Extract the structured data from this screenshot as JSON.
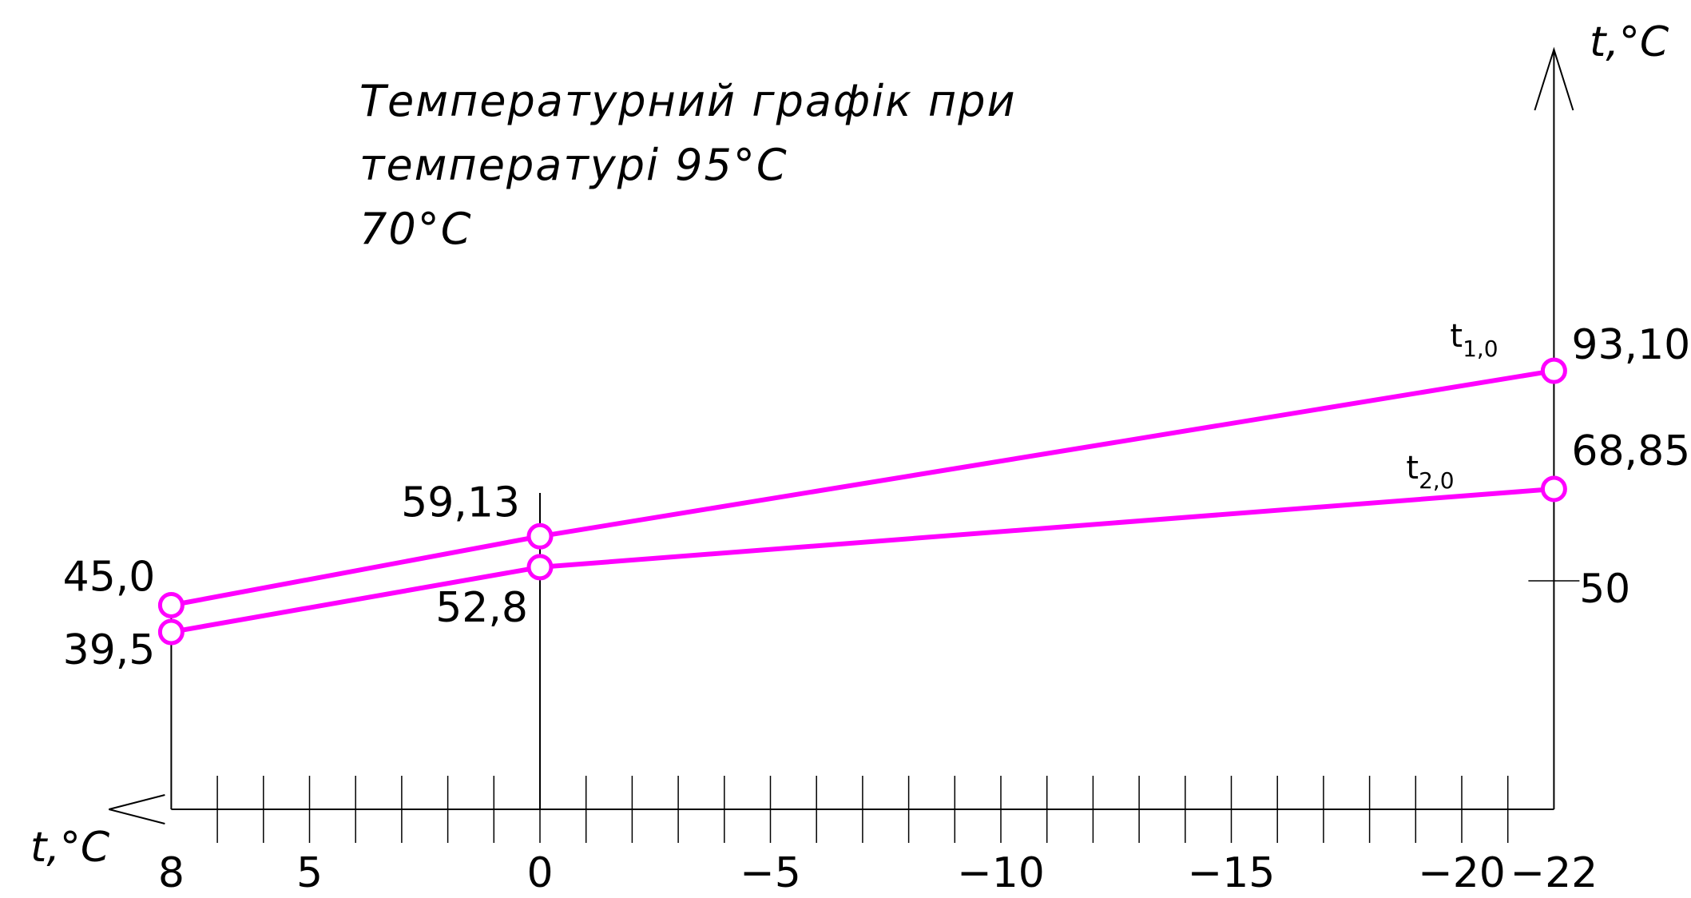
{
  "title_lines": [
    "Температурний графік при",
    "температурі 95°C",
    "70°C"
  ],
  "chart_data": {
    "type": "line",
    "title": "Температурний графік при температурі 95°C 70°C",
    "xlabel": "t,°C",
    "ylabel": "t,°C",
    "x_ticks": [
      8,
      5,
      0,
      -5,
      -10,
      -15,
      -20,
      -22
    ],
    "x_tick_labels": [
      "8",
      "5",
      "0",
      "−5",
      "−10",
      "−15",
      "−20",
      "−22"
    ],
    "y_ticks": [
      50
    ],
    "y_tick_labels": [
      "50"
    ],
    "series": [
      {
        "name": "t1,0",
        "name_main": "t",
        "name_sub": "1,0",
        "x": [
          8,
          0,
          -22
        ],
        "y": [
          45.0,
          59.13,
          93.1
        ],
        "labels": [
          "45,0",
          "59,13",
          "93,10"
        ]
      },
      {
        "name": "t2,0",
        "name_main": "t",
        "name_sub": "2,0",
        "x": [
          8,
          0,
          -22
        ],
        "y": [
          39.5,
          52.8,
          68.85
        ],
        "labels": [
          "39,5",
          "52,8",
          "68,85"
        ]
      }
    ],
    "colors": {
      "series": "#ff00ff",
      "axes": "#000000"
    },
    "grid": false,
    "legend": "none"
  }
}
